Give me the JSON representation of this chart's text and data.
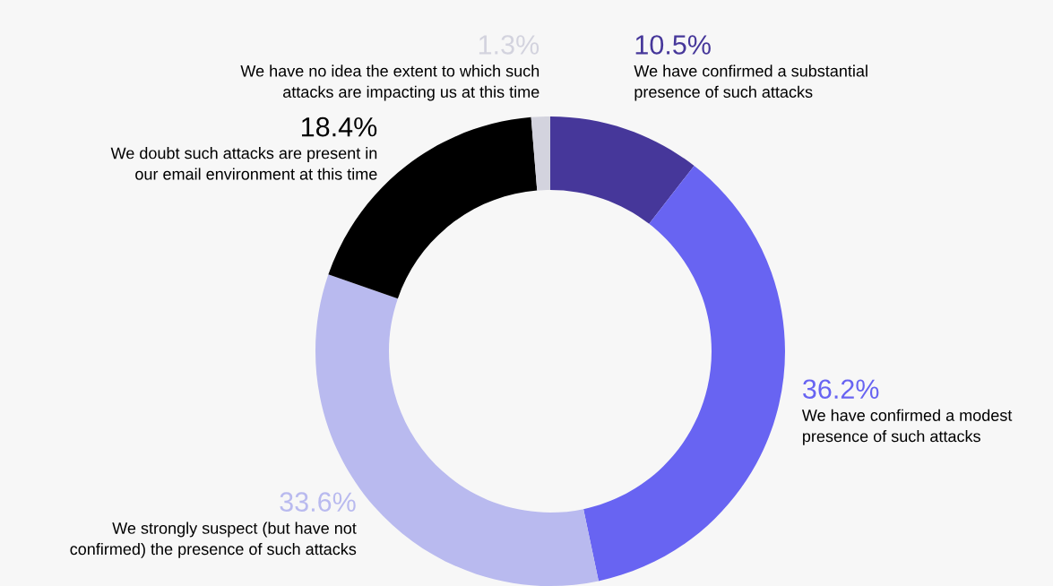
{
  "chart_data": {
    "type": "donut",
    "categories": [
      "We have confirmed a substantial presence of such attacks",
      "We have confirmed a modest presence of such attacks",
      "We strongly suspect (but have not confirmed) the presence of such attacks",
      "We doubt such attacks are present in our email environment at this time",
      "We have no idea the extent to which such attacks are impacting us at this time"
    ],
    "values": [
      10.5,
      36.2,
      33.6,
      18.4,
      1.3
    ],
    "value_labels": [
      "10.5%",
      "36.2%",
      "33.6%",
      "18.4%",
      "1.3%"
    ],
    "colors": [
      "#46379a",
      "#6864f2",
      "#b9baef",
      "#000000",
      "#d3d3de"
    ],
    "legend": false
  }
}
